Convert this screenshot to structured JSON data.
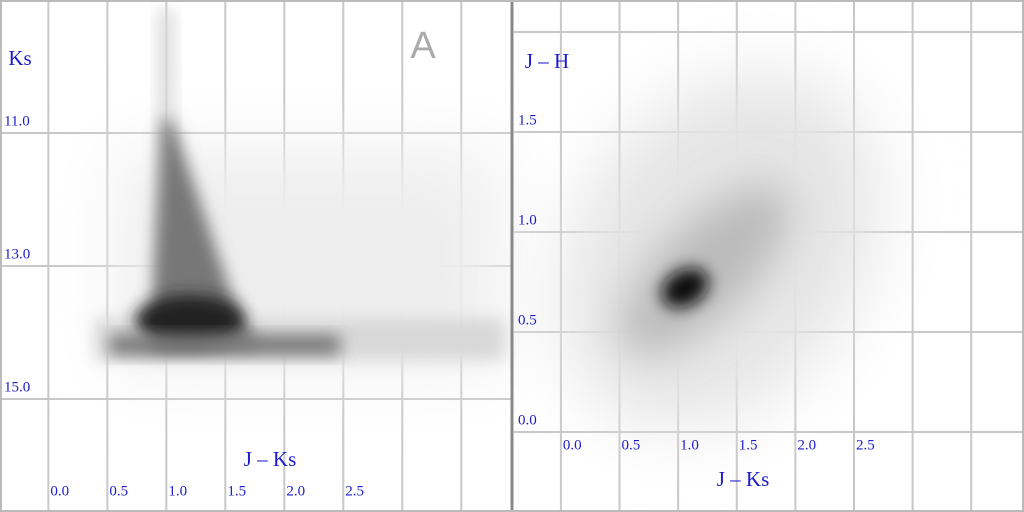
{
  "chart_data": [
    {
      "type": "density",
      "annotation": "A",
      "x_label": "J – Ks",
      "y_label": "Ks",
      "xlim": [
        -0.41,
        3.93
      ],
      "ylim": [
        9.0,
        16.7
      ],
      "invert_y": true,
      "grid": true,
      "xticks": [
        {
          "value": 0,
          "label": "0.0"
        },
        {
          "value": 0.5,
          "label": "0.5"
        },
        {
          "value": 1,
          "label": "1.0"
        },
        {
          "value": 1.5,
          "label": "1.5"
        },
        {
          "value": 2,
          "label": "2.0"
        },
        {
          "value": 2.5,
          "label": "2.5"
        }
      ],
      "yticks": [
        {
          "value": 11,
          "label": "11.0"
        },
        {
          "value": 13,
          "label": "13.0"
        },
        {
          "value": 15,
          "label": "15.0"
        }
      ]
    },
    {
      "type": "density",
      "x_label": "J – Ks",
      "y_label": "J – H",
      "xlim": [
        -0.4,
        3.95
      ],
      "ylim": [
        -0.4,
        2.16
      ],
      "invert_y": false,
      "grid": true,
      "xticks": [
        {
          "value": 0,
          "label": "0.0"
        },
        {
          "value": 0.5,
          "label": "0.5"
        },
        {
          "value": 1,
          "label": "1.0"
        },
        {
          "value": 1.5,
          "label": "1.5"
        },
        {
          "value": 2,
          "label": "2.0"
        },
        {
          "value": 2.5,
          "label": "2.5"
        }
      ],
      "yticks": [
        {
          "value": 0,
          "label": "0.0"
        },
        {
          "value": 0.5,
          "label": "0.5"
        },
        {
          "value": 1,
          "label": "1.0"
        },
        {
          "value": 1.5,
          "label": "1.5"
        }
      ]
    }
  ]
}
